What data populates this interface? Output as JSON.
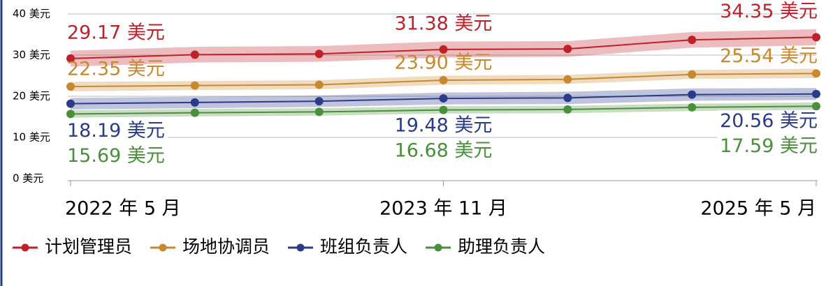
{
  "chart_data": {
    "type": "line",
    "categories": [
      "2022 年 5 月",
      null,
      null,
      "2023 年 11 月",
      null,
      null,
      "2025 年 5 月"
    ],
    "ylim": [
      0,
      40
    ],
    "yticks": [
      {
        "value": 0,
        "label": "0 美元"
      },
      {
        "value": 10,
        "label": "10 美元"
      },
      {
        "value": 20,
        "label": "20 美元"
      },
      {
        "value": 30,
        "label": "30 美元"
      },
      {
        "value": 40,
        "label": "40 美元"
      }
    ],
    "grid": true,
    "legend": "bottom",
    "series": [
      {
        "name": "计划管理员",
        "color": "#c0202a",
        "values": [
          29.17,
          30.1,
          30.3,
          31.38,
          31.5,
          33.7,
          34.35
        ],
        "lower": [
          27.2,
          28.2,
          28.4,
          29.4,
          29.6,
          31.8,
          32.4
        ],
        "upper": [
          31.1,
          32.0,
          32.2,
          33.3,
          33.4,
          35.6,
          36.3
        ],
        "value_labels": [
          "29.17 美元",
          null,
          null,
          "31.38 美元",
          null,
          null,
          "34.35 美元"
        ]
      },
      {
        "name": "场地协调员",
        "color": "#c8892e",
        "values": [
          22.35,
          22.6,
          22.8,
          23.9,
          24.1,
          25.3,
          25.54
        ],
        "lower": [
          21.2,
          21.5,
          21.7,
          22.8,
          23.0,
          24.2,
          24.4
        ],
        "upper": [
          23.5,
          23.7,
          23.9,
          25.0,
          25.2,
          26.4,
          26.7
        ],
        "value_labels": [
          "22.35 美元",
          null,
          null,
          "23.90 美元",
          null,
          null,
          "25.54 美元"
        ]
      },
      {
        "name": "班组负责人",
        "color": "#2a3b8a",
        "values": [
          18.19,
          18.5,
          18.8,
          19.48,
          19.6,
          20.4,
          20.56
        ],
        "lower": [
          16.8,
          17.1,
          17.4,
          18.0,
          18.1,
          18.9,
          19.1
        ],
        "upper": [
          19.6,
          19.9,
          20.2,
          20.9,
          21.1,
          21.9,
          22.0
        ],
        "value_labels": [
          "18.19 美元",
          null,
          null,
          "19.48 美元",
          null,
          null,
          "20.56 美元"
        ]
      },
      {
        "name": "助理负责人",
        "color": "#4a8f3a",
        "values": [
          15.69,
          16.0,
          16.2,
          16.68,
          16.8,
          17.3,
          17.59
        ],
        "lower": [
          14.8,
          15.1,
          15.3,
          15.8,
          15.9,
          16.4,
          16.7
        ],
        "upper": [
          16.6,
          16.9,
          17.1,
          17.6,
          17.7,
          18.2,
          18.5
        ],
        "value_labels": [
          "15.69 美元",
          null,
          null,
          "16.68 美元",
          null,
          null,
          "17.59 美元"
        ]
      }
    ]
  }
}
